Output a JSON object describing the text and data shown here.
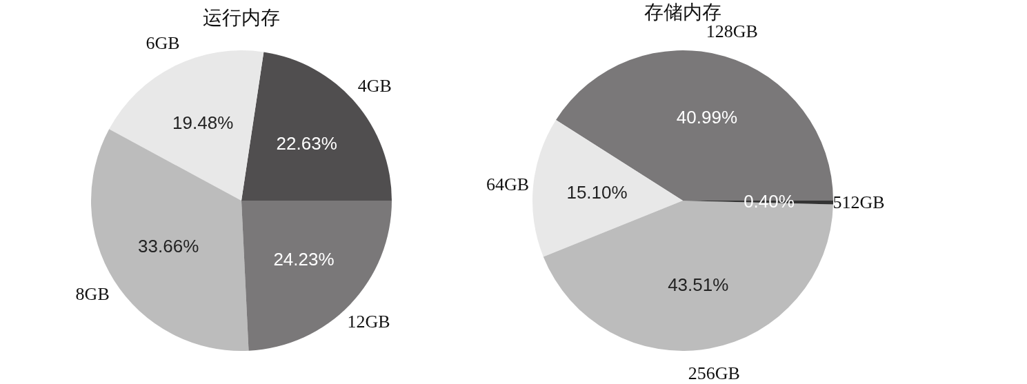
{
  "chart_data": [
    {
      "type": "pie",
      "title": "运行内存",
      "categories": [
        "4GB",
        "6GB",
        "8GB",
        "12GB"
      ],
      "values": [
        22.63,
        19.48,
        33.66,
        24.23
      ],
      "value_labels": [
        "22.63%",
        "19.48%",
        "33.66%",
        "24.23%"
      ],
      "colors": [
        "#504e4f",
        "#e8e8e8",
        "#bcbcbc",
        "#7a7879"
      ],
      "legend": false
    },
    {
      "type": "pie",
      "title": "存储内存",
      "categories": [
        "128GB",
        "64GB",
        "256GB",
        "512GB"
      ],
      "values": [
        40.99,
        15.1,
        43.51,
        0.4
      ],
      "value_labels": [
        "40.99%",
        "15.10%",
        "43.51%",
        "0.40%"
      ],
      "colors": [
        "#7a7879",
        "#e8e8e8",
        "#bcbcbc",
        "#333333"
      ],
      "legend": false
    }
  ]
}
